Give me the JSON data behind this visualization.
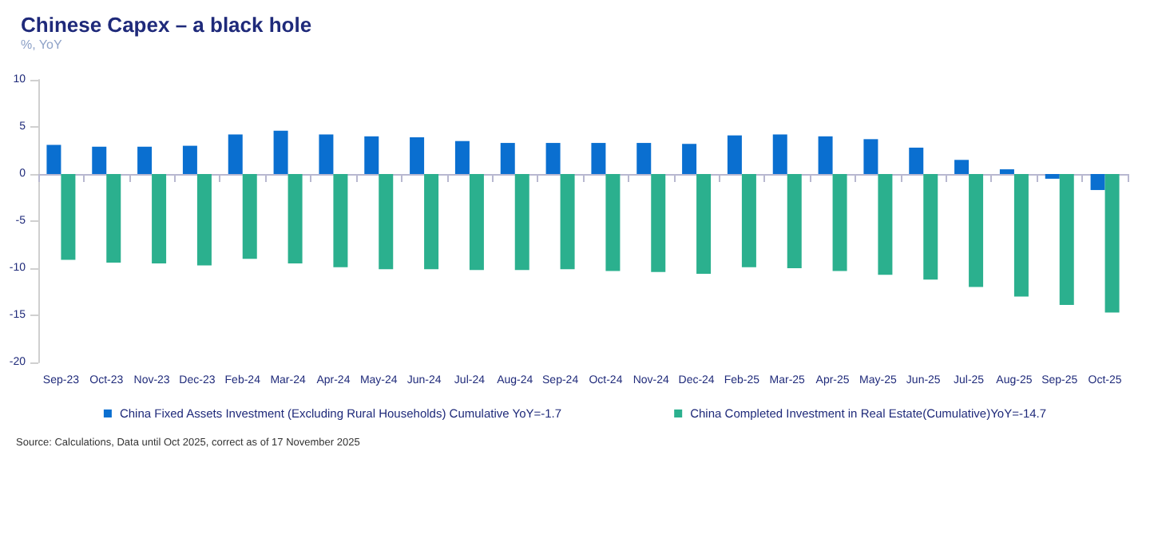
{
  "chart_data": {
    "type": "bar",
    "title": "Chinese Capex – a black hole",
    "subtitle": "%, YoY",
    "categories": [
      "Sep-23",
      "Oct-23",
      "Nov-23",
      "Dec-23",
      "Feb-24",
      "Mar-24",
      "Apr-24",
      "May-24",
      "Jun-24",
      "Jul-24",
      "Aug-24",
      "Sep-24",
      "Oct-24",
      "Nov-24",
      "Dec-24",
      "Feb-25",
      "Mar-25",
      "Apr-25",
      "May-25",
      "Jun-25",
      "Jul-25",
      "Aug-25",
      "Sep-25",
      "Oct-25"
    ],
    "series": [
      {
        "name": "China Fixed Assets Investment (Excluding Rural Households) Cumulative YoY=-1.7",
        "color": "#0a6fd0",
        "values": [
          3.1,
          2.9,
          2.9,
          3.0,
          4.2,
          4.6,
          4.2,
          4.0,
          3.9,
          3.5,
          3.3,
          3.3,
          3.3,
          3.3,
          3.2,
          4.1,
          4.2,
          4.0,
          3.7,
          2.8,
          1.5,
          0.5,
          -0.5,
          -1.7
        ]
      },
      {
        "name": "China Completed Investment in Real Estate(Cumulative)YoY=-14.7",
        "color": "#2bb08e",
        "values": [
          -9.1,
          -9.4,
          -9.5,
          -9.7,
          -9.0,
          -9.5,
          -9.9,
          -10.1,
          -10.1,
          -10.2,
          -10.2,
          -10.1,
          -10.3,
          -10.4,
          -10.6,
          -9.9,
          -10.0,
          -10.3,
          -10.7,
          -11.2,
          -12.0,
          -13.0,
          -13.9,
          -14.7
        ]
      }
    ],
    "ylim": [
      -20,
      10
    ],
    "yticks": [
      -20,
      -15,
      -10,
      -5,
      0,
      5,
      10
    ],
    "legend": "bottom",
    "annotations": [
      "Source: Calculations, Data until Oct 2025, correct as of 17 November 2025"
    ]
  }
}
